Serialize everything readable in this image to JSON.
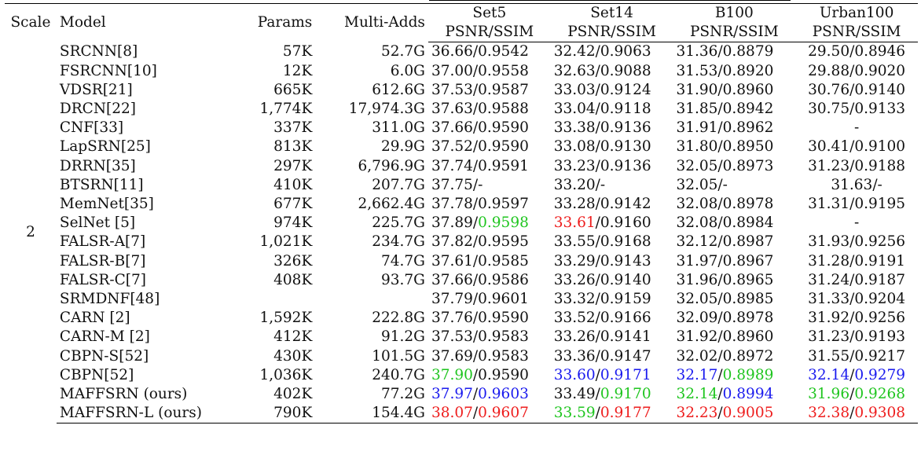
{
  "header": {
    "scale": "Scale",
    "model": "Model",
    "params": "Params",
    "multi_adds": "Multi-Adds",
    "datasets": [
      "Set5",
      "Set14",
      "B100",
      "Urban100"
    ],
    "metric": "PSNR/SSIM"
  },
  "scale_value": "2",
  "colors": {
    "green": "#1fc51f",
    "red": "#ee1d1d",
    "blue": "#1a1aee"
  },
  "rows": [
    {
      "model": "SRCNN[8]",
      "params": "57K",
      "madds": "52.7G",
      "m": [
        [
          "36.66",
          "/",
          "0.9542"
        ],
        [
          "32.42",
          "/",
          "0.9063"
        ],
        [
          "31.36",
          "/",
          "0.8879"
        ],
        [
          "29.50",
          "/",
          "0.8946"
        ]
      ],
      "c": [
        [
          "",
          ""
        ],
        [
          "",
          ""
        ],
        [
          "",
          ""
        ],
        [
          "",
          ""
        ]
      ]
    },
    {
      "model": "FSRCNN[10]",
      "params": "12K",
      "madds": "6.0G",
      "m": [
        [
          "37.00",
          "/",
          "0.9558"
        ],
        [
          "32.63",
          "/",
          "0.9088"
        ],
        [
          "31.53",
          "/",
          "0.8920"
        ],
        [
          "29.88",
          "/",
          "0.9020"
        ]
      ],
      "c": [
        [
          "",
          ""
        ],
        [
          "",
          ""
        ],
        [
          "",
          ""
        ],
        [
          "",
          ""
        ]
      ]
    },
    {
      "model": "VDSR[21]",
      "params": "665K",
      "madds": "612.6G",
      "m": [
        [
          "37.53",
          "/",
          "0.9587"
        ],
        [
          "33.03",
          "/",
          "0.9124"
        ],
        [
          "31.90",
          "/",
          "0.8960"
        ],
        [
          "30.76",
          "/",
          "0.9140"
        ]
      ],
      "c": [
        [
          "",
          ""
        ],
        [
          "",
          ""
        ],
        [
          "",
          ""
        ],
        [
          "",
          ""
        ]
      ]
    },
    {
      "model": "DRCN[22]",
      "params": "1,774K",
      "madds": "17,974.3G",
      "m": [
        [
          "37.63",
          "/",
          "0.9588"
        ],
        [
          "33.04",
          "/",
          "0.9118"
        ],
        [
          "31.85",
          "/",
          "0.8942"
        ],
        [
          "30.75",
          "/",
          "0.9133"
        ]
      ],
      "c": [
        [
          "",
          ""
        ],
        [
          "",
          ""
        ],
        [
          "",
          ""
        ],
        [
          "",
          ""
        ]
      ]
    },
    {
      "model": "CNF[33]",
      "params": "337K",
      "madds": "311.0G",
      "m": [
        [
          "37.66",
          "/",
          "0.9590"
        ],
        [
          "33.38",
          "/",
          "0.9136"
        ],
        [
          "31.91",
          "/",
          "0.8962"
        ],
        [
          "",
          "-",
          ""
        ]
      ],
      "c": [
        [
          "",
          ""
        ],
        [
          "",
          ""
        ],
        [
          "",
          ""
        ],
        [
          "",
          ""
        ]
      ]
    },
    {
      "model": "LapSRN[25]",
      "params": "813K",
      "madds": "29.9G",
      "m": [
        [
          "37.52",
          "/",
          "0.9590"
        ],
        [
          "33.08",
          "/",
          "0.9130"
        ],
        [
          "31.80",
          "/",
          "0.8950"
        ],
        [
          "30.41",
          "/",
          "0.9100"
        ]
      ],
      "c": [
        [
          "",
          ""
        ],
        [
          "",
          ""
        ],
        [
          "",
          ""
        ],
        [
          "",
          ""
        ]
      ]
    },
    {
      "model": "DRRN[35]",
      "params": "297K",
      "madds": "6,796.9G",
      "m": [
        [
          "37.74",
          "/",
          "0.9591"
        ],
        [
          "33.23",
          "/",
          "0.9136"
        ],
        [
          "32.05",
          "/",
          "0.8973"
        ],
        [
          "31.23",
          "/",
          "0.9188"
        ]
      ],
      "c": [
        [
          "",
          ""
        ],
        [
          "",
          ""
        ],
        [
          "",
          ""
        ],
        [
          "",
          ""
        ]
      ]
    },
    {
      "model": "BTSRN[11]",
      "params": "410K",
      "madds": "207.7G",
      "m": [
        [
          "37.75",
          "/-",
          ""
        ],
        [
          "33.20",
          "/-",
          ""
        ],
        [
          "32.05",
          "/-",
          ""
        ],
        [
          "31.63",
          "/-",
          ""
        ]
      ],
      "c": [
        [
          "",
          ""
        ],
        [
          "",
          ""
        ],
        [
          "",
          ""
        ],
        [
          "",
          ""
        ]
      ]
    },
    {
      "model": "MemNet[35]",
      "params": "677K",
      "madds": "2,662.4G",
      "m": [
        [
          "37.78",
          "/",
          "0.9597"
        ],
        [
          "33.28",
          "/",
          "0.9142"
        ],
        [
          "32.08",
          "/",
          "0.8978"
        ],
        [
          "31.31",
          "/",
          "0.9195"
        ]
      ],
      "c": [
        [
          "",
          ""
        ],
        [
          "",
          ""
        ],
        [
          "",
          ""
        ],
        [
          "",
          ""
        ]
      ]
    },
    {
      "model": "SelNet [5]",
      "params": "974K",
      "madds": "225.7G",
      "m": [
        [
          "37.89",
          "/",
          "0.9598"
        ],
        [
          "33.61",
          "/",
          "0.9160"
        ],
        [
          "32.08",
          "/",
          "0.8984"
        ],
        [
          "",
          "-",
          ""
        ]
      ],
      "c": [
        [
          "",
          "green"
        ],
        [
          "red",
          ""
        ],
        [
          "",
          ""
        ],
        [
          "",
          ""
        ]
      ]
    },
    {
      "model": "FALSR-A[7]",
      "params": "1,021K",
      "madds": "234.7G",
      "m": [
        [
          "37.82",
          "/",
          "0.9595"
        ],
        [
          "33.55",
          "/",
          "0.9168"
        ],
        [
          "32.12",
          "/",
          "0.8987"
        ],
        [
          "31.93",
          "/",
          "0.9256"
        ]
      ],
      "c": [
        [
          "",
          ""
        ],
        [
          "",
          ""
        ],
        [
          "",
          ""
        ],
        [
          "",
          ""
        ]
      ]
    },
    {
      "model": "FALSR-B[7]",
      "params": "326K",
      "madds": "74.7G",
      "m": [
        [
          "37.61",
          "/",
          "0.9585"
        ],
        [
          "33.29",
          "/",
          "0.9143"
        ],
        [
          "31.97",
          "/",
          "0.8967"
        ],
        [
          "31.28",
          "/",
          "0.9191"
        ]
      ],
      "c": [
        [
          "",
          ""
        ],
        [
          "",
          ""
        ],
        [
          "",
          ""
        ],
        [
          "",
          ""
        ]
      ]
    },
    {
      "model": "FALSR-C[7]",
      "params": "408K",
      "madds": "93.7G",
      "m": [
        [
          "37.66",
          "/",
          "0.9586"
        ],
        [
          "33.26",
          "/",
          "0.9140"
        ],
        [
          "31.96",
          "/",
          "0.8965"
        ],
        [
          "31.24",
          "/",
          "0.9187"
        ]
      ],
      "c": [
        [
          "",
          ""
        ],
        [
          "",
          ""
        ],
        [
          "",
          ""
        ],
        [
          "",
          ""
        ]
      ]
    },
    {
      "model": "SRMDNF[48]",
      "params": "",
      "madds": "",
      "m": [
        [
          "37.79",
          "/",
          "0.9601"
        ],
        [
          "33.32",
          "/",
          "0.9159"
        ],
        [
          "32.05",
          "/",
          "0.8985"
        ],
        [
          "31.33",
          "/",
          "0.9204"
        ]
      ],
      "c": [
        [
          "",
          ""
        ],
        [
          "",
          ""
        ],
        [
          "",
          ""
        ],
        [
          "",
          ""
        ]
      ]
    },
    {
      "model": "CARN [2]",
      "params": "1,592K",
      "madds": "222.8G",
      "m": [
        [
          "37.76",
          "/",
          "0.9590"
        ],
        [
          "33.52",
          "/",
          "0.9166"
        ],
        [
          "32.09",
          "/",
          "0.8978"
        ],
        [
          "31.92",
          "/",
          "0.9256"
        ]
      ],
      "c": [
        [
          "",
          ""
        ],
        [
          "",
          ""
        ],
        [
          "",
          ""
        ],
        [
          "",
          ""
        ]
      ]
    },
    {
      "model": "CARN-M [2]",
      "params": "412K",
      "madds": "91.2G",
      "m": [
        [
          "37.53",
          "/",
          "0.9583"
        ],
        [
          "33.26",
          "/",
          "0.9141"
        ],
        [
          "31.92",
          "/",
          "0.8960"
        ],
        [
          "31.23",
          "/",
          "0.9193"
        ]
      ],
      "c": [
        [
          "",
          ""
        ],
        [
          "",
          ""
        ],
        [
          "",
          ""
        ],
        [
          "",
          ""
        ]
      ]
    },
    {
      "model": "CBPN-S[52]",
      "params": "430K",
      "madds": "101.5G",
      "m": [
        [
          "37.69",
          "/",
          "0.9583"
        ],
        [
          "33.36",
          "/",
          "0.9147"
        ],
        [
          "32.02",
          "/",
          "0.8972"
        ],
        [
          "31.55",
          "/",
          "0.9217"
        ]
      ],
      "c": [
        [
          "",
          ""
        ],
        [
          "",
          ""
        ],
        [
          "",
          ""
        ],
        [
          "",
          ""
        ]
      ]
    },
    {
      "model": "CBPN[52]",
      "params": "1,036K",
      "madds": "240.7G",
      "m": [
        [
          "37.90",
          "/",
          "0.9590"
        ],
        [
          "33.60",
          "/",
          "0.9171"
        ],
        [
          "32.17",
          "/",
          "0.8989"
        ],
        [
          "32.14",
          "/",
          "0.9279"
        ]
      ],
      "c": [
        [
          "green",
          ""
        ],
        [
          "blue",
          "blue"
        ],
        [
          "blue",
          "green"
        ],
        [
          "blue",
          "blue"
        ]
      ]
    },
    {
      "model": "MAFFSRN (ours)",
      "params": "402K",
      "madds": "77.2G",
      "m": [
        [
          "37.97",
          "/",
          "0.9603"
        ],
        [
          "33.49",
          "/",
          "0.9170"
        ],
        [
          "32.14",
          "/",
          "0.8994"
        ],
        [
          "31.96",
          "/",
          "0.9268"
        ]
      ],
      "c": [
        [
          "blue",
          "blue"
        ],
        [
          "",
          "green"
        ],
        [
          "green",
          "blue"
        ],
        [
          "green",
          "green"
        ]
      ]
    },
    {
      "model": "MAFFSRN-L (ours)",
      "params": "790K",
      "madds": "154.4G",
      "m": [
        [
          "38.07",
          "/",
          "0.9607"
        ],
        [
          "33.59",
          "/",
          "0.9177"
        ],
        [
          "32.23",
          "/",
          "0.9005"
        ],
        [
          "32.38",
          "/",
          "0.9308"
        ]
      ],
      "c": [
        [
          "red",
          "red"
        ],
        [
          "green",
          "red"
        ],
        [
          "red",
          "red"
        ],
        [
          "red",
          "red"
        ]
      ]
    }
  ]
}
